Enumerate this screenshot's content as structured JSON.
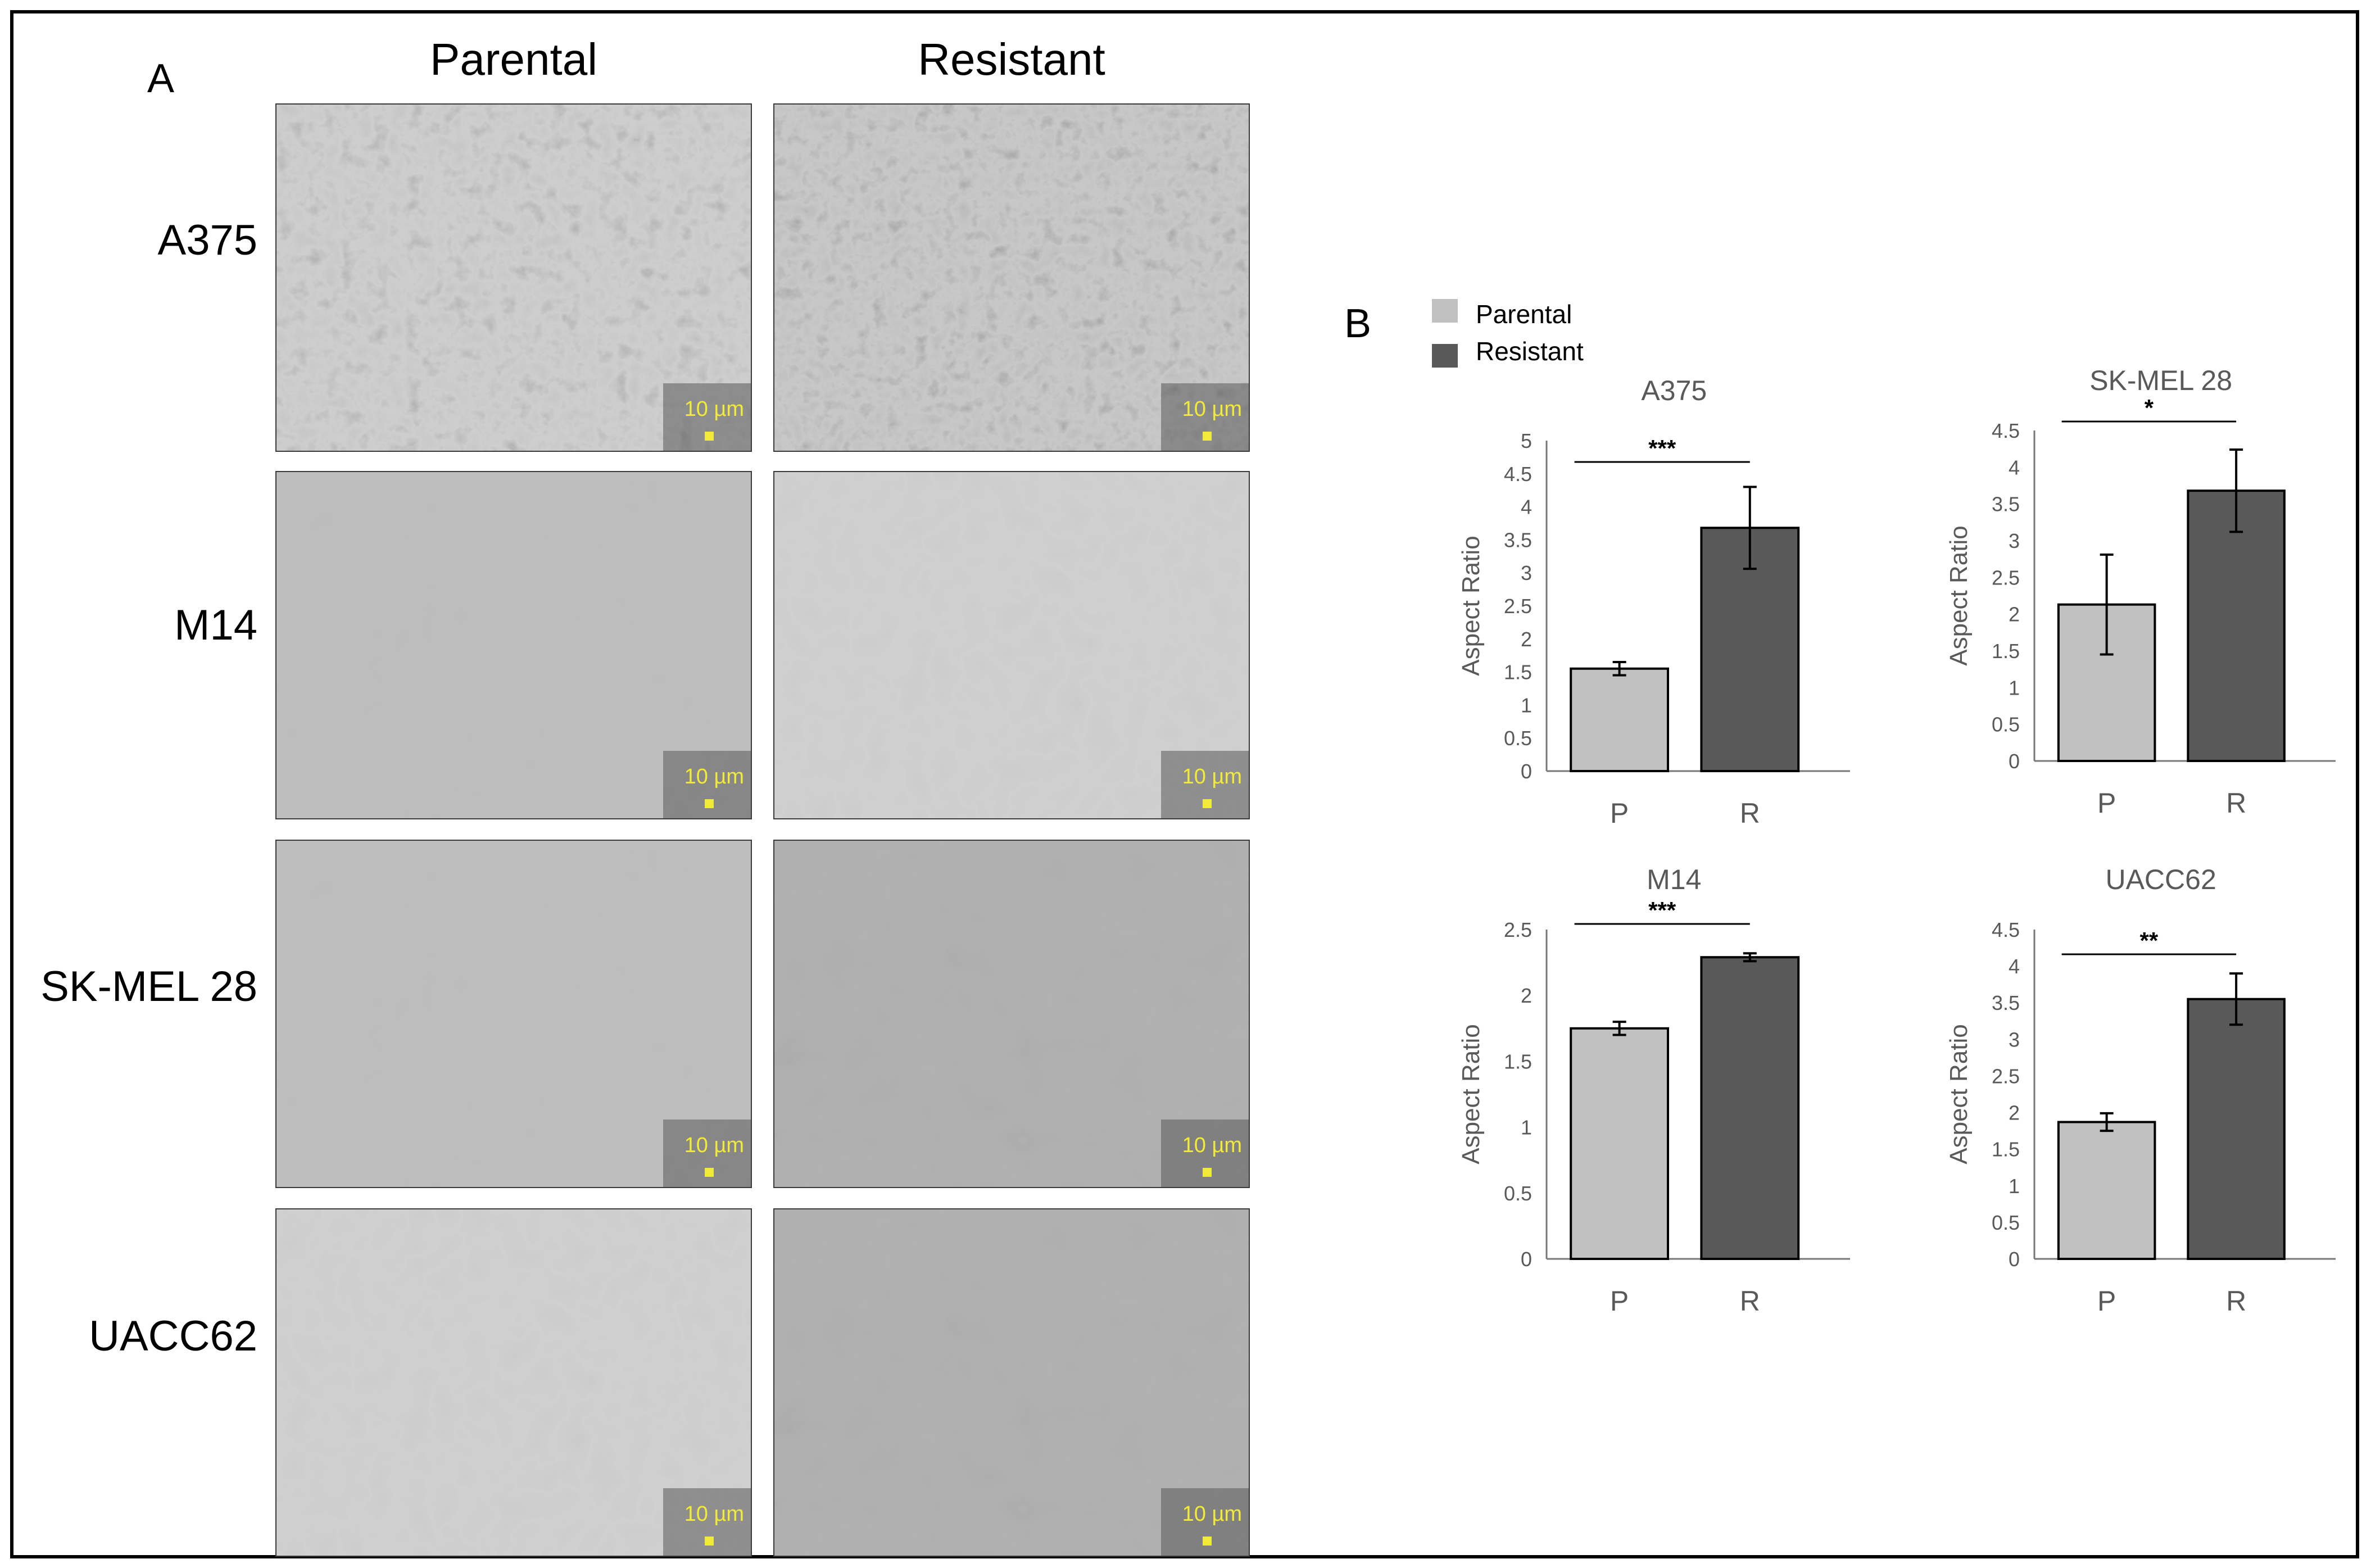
{
  "panel_a": {
    "letter": "A",
    "columns": [
      "Parental",
      "Resistant"
    ],
    "rows": [
      "A375",
      "M14",
      "SK-MEL 28",
      "UACC62"
    ],
    "scale_label": "10 µm"
  },
  "panel_b": {
    "letter": "B",
    "legend": [
      {
        "label": "Parental",
        "color": "#c0c0c0"
      },
      {
        "label": "Resistant",
        "color": "#595959"
      }
    ]
  },
  "chart_data": [
    {
      "type": "bar",
      "title": "A375",
      "ylabel": "Aspect Ratio",
      "categories": [
        "P",
        "R"
      ],
      "series": [
        {
          "values": [
            1.55,
            3.68
          ],
          "errors": [
            0.1,
            0.62
          ]
        }
      ],
      "ylim": [
        0,
        5
      ],
      "yticks": [
        "0",
        "0.5",
        "1",
        "1.5",
        "2",
        "2.5",
        "3",
        "3.5",
        "4",
        "4.5",
        "5"
      ],
      "significance": "***",
      "grid": false
    },
    {
      "type": "bar",
      "title": "SK-MEL 28",
      "ylabel": "Aspect Ratio",
      "categories": [
        "P",
        "R"
      ],
      "series": [
        {
          "values": [
            2.13,
            3.68
          ],
          "errors": [
            0.68,
            0.56
          ]
        }
      ],
      "ylim": [
        0,
        4.5
      ],
      "yticks": [
        "0",
        "0.5",
        "1",
        "1.5",
        "2",
        "2.5",
        "3",
        "3.5",
        "4",
        "4.5"
      ],
      "significance": "*",
      "grid": false
    },
    {
      "type": "bar",
      "title": "M14",
      "ylabel": "Aspect Ratio",
      "categories": [
        "P",
        "R"
      ],
      "series": [
        {
          "values": [
            1.75,
            2.29
          ],
          "errors": [
            0.05,
            0.03
          ]
        }
      ],
      "ylim": [
        0,
        2.5
      ],
      "yticks": [
        "0",
        "0.5",
        "1",
        "1.5",
        "2",
        "2.5"
      ],
      "significance": "***",
      "grid": false
    },
    {
      "type": "bar",
      "title": "UACC62",
      "ylabel": "Aspect Ratio",
      "categories": [
        "P",
        "R"
      ],
      "series": [
        {
          "values": [
            1.87,
            3.55
          ],
          "errors": [
            0.12,
            0.35
          ]
        }
      ],
      "ylim": [
        0,
        4.5
      ],
      "yticks": [
        "0",
        "0.5",
        "1",
        "1.5",
        "2",
        "2.5",
        "3",
        "3.5",
        "4",
        "4.5"
      ],
      "significance": "**",
      "grid": false
    }
  ]
}
